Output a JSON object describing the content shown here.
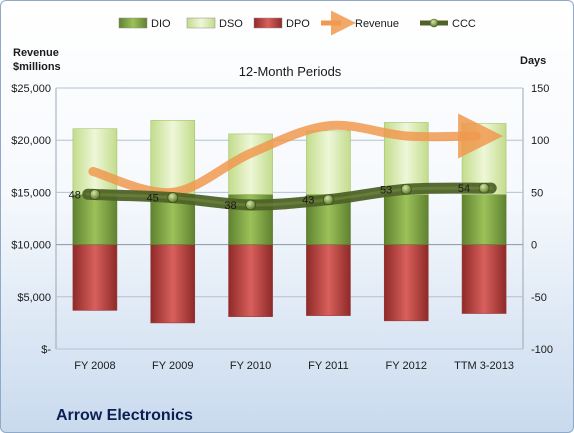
{
  "chart_data": {
    "type": "bar",
    "title": "12-Month Periods",
    "categories": [
      "FY 2008",
      "FY 2009",
      "FY 2010",
      "FY 2011",
      "FY 2012",
      "TTM 3-2013"
    ],
    "left_axis": {
      "label_lines": [
        "Revenue",
        "$millions"
      ],
      "min": 0,
      "max": 25000,
      "ticks": [
        0,
        5000,
        10000,
        15000,
        20000,
        25000
      ],
      "tick_labels": [
        "$-",
        "$5,000",
        "$10,000",
        "$15,000",
        "$20,000",
        "$25,000"
      ]
    },
    "right_axis": {
      "label": "Days",
      "min": -100,
      "max": 150,
      "ticks": [
        -100,
        -50,
        0,
        50,
        100,
        150
      ],
      "tick_labels": [
        "-100",
        "-50",
        "0",
        "50",
        "100",
        "150"
      ]
    },
    "stacked_series": [
      {
        "name": "DIO",
        "axis": "right",
        "color": "#7ea23f",
        "values": [
          48,
          48,
          48,
          48,
          48,
          48
        ]
      },
      {
        "name": "DSO",
        "axis": "right",
        "color": "#d6e9a8",
        "values": [
          63,
          71,
          58,
          61,
          69,
          68
        ]
      }
    ],
    "negative_series": [
      {
        "name": "DPO",
        "axis": "right",
        "color": "#c0504d",
        "values": [
          -63,
          -75,
          -69,
          -68,
          -73,
          -66
        ]
      }
    ],
    "line_series": [
      {
        "name": "Revenue",
        "axis": "left",
        "color": "#f0994f",
        "style": "arrow",
        "values": [
          17000,
          15000,
          18744,
          21390,
          20405,
          20400
        ]
      },
      {
        "name": "CCC",
        "axis": "right",
        "color": "#4f6228",
        "style": "line-marker",
        "values": [
          48,
          45,
          38,
          43,
          53,
          54
        ]
      }
    ],
    "data_labels": [
      48,
      45,
      38,
      43,
      53,
      54
    ],
    "legend": {
      "position": "top",
      "items": [
        {
          "name": "DIO",
          "kind": "box",
          "color": "#7ea23f"
        },
        {
          "name": "DSO",
          "kind": "box",
          "color": "#d6e9a8"
        },
        {
          "name": "DPO",
          "kind": "box",
          "color": "#c0504d"
        },
        {
          "name": "Revenue",
          "kind": "arrow",
          "color": "#f0994f"
        },
        {
          "name": "CCC",
          "kind": "line-marker",
          "color": "#4f6228"
        }
      ]
    }
  },
  "footer": {
    "title": "Arrow Electronics"
  }
}
